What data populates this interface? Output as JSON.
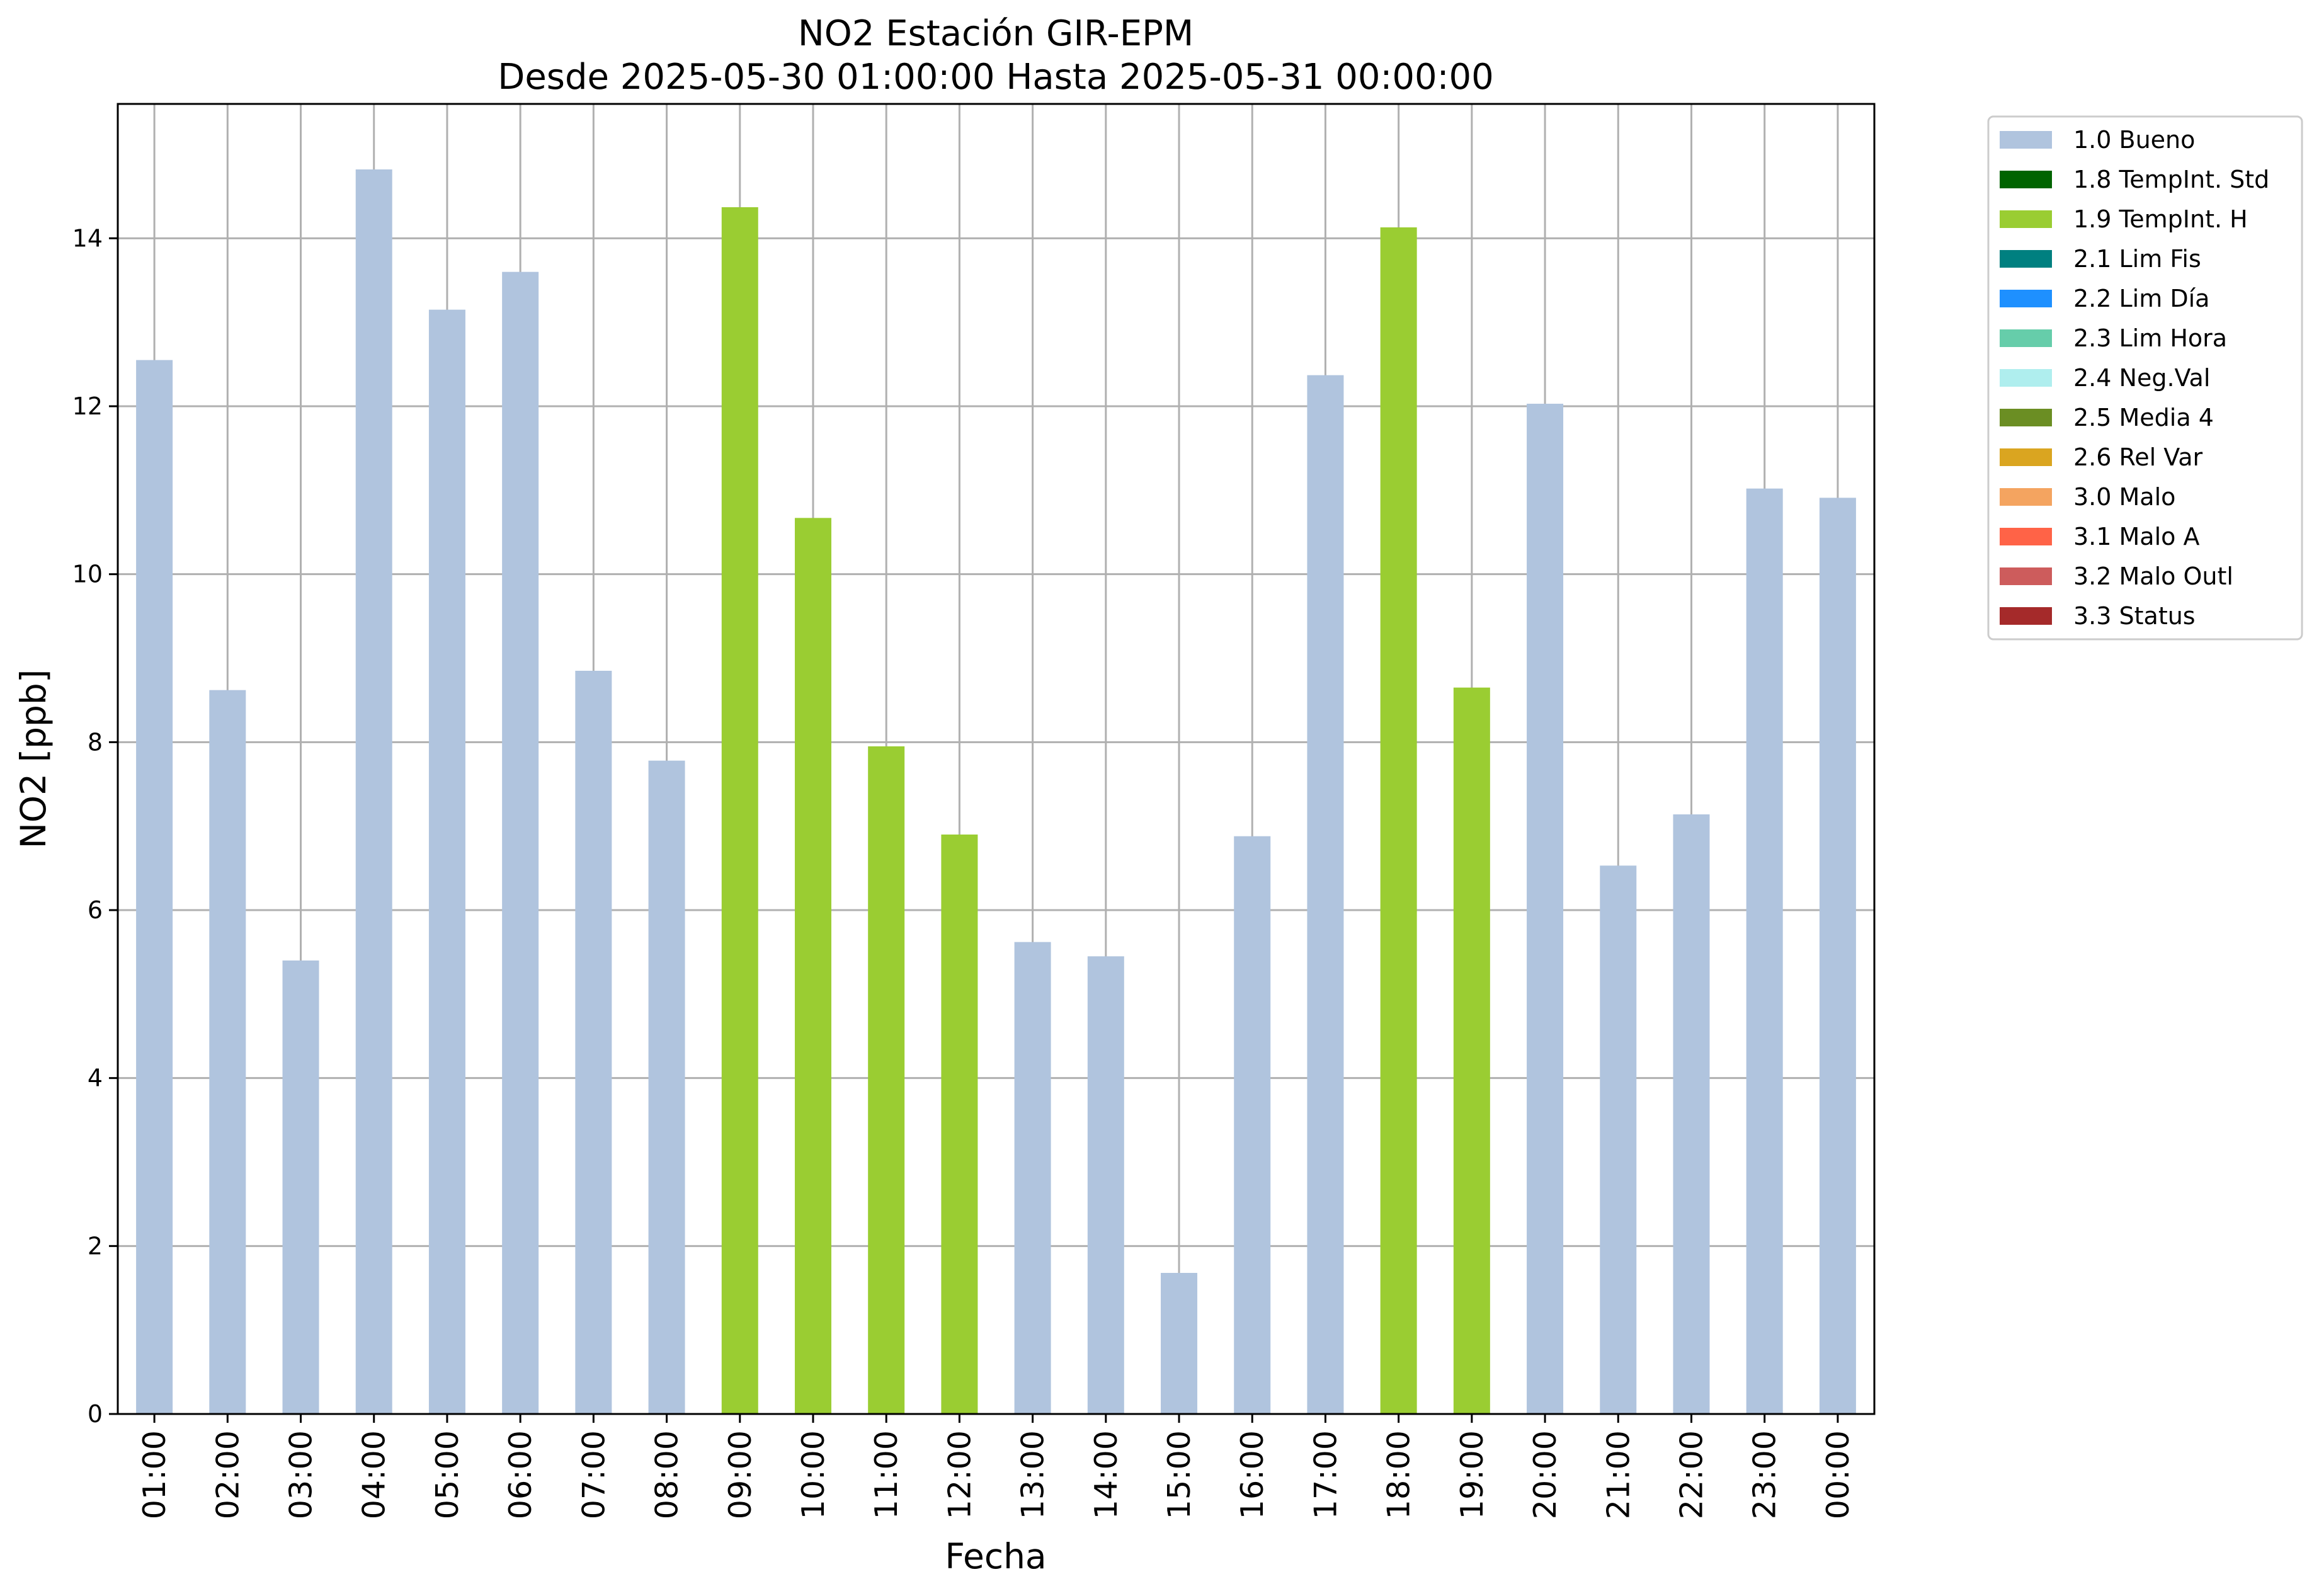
{
  "chart_data": {
    "type": "bar",
    "title": "NO2 Estación GIR-EPM",
    "subtitle": "Desde 2025-05-30 01:00:00 Hasta 2025-05-31 00:00:00",
    "xlabel": "Fecha",
    "ylabel": "NO2 [ppb]",
    "ylim": [
      0,
      15.6
    ],
    "yticks": [
      "0",
      "2",
      "4",
      "6",
      "8",
      "10",
      "12",
      "14"
    ],
    "grid": true,
    "legend_position": "outside-right",
    "categories": [
      "01:00",
      "02:00",
      "03:00",
      "04:00",
      "05:00",
      "06:00",
      "07:00",
      "08:00",
      "09:00",
      "10:00",
      "11:00",
      "12:00",
      "13:00",
      "14:00",
      "15:00",
      "16:00",
      "17:00",
      "18:00",
      "19:00",
      "20:00",
      "21:00",
      "22:00",
      "23:00",
      "00:00"
    ],
    "values": [
      12.55,
      8.62,
      5.4,
      14.82,
      13.15,
      13.6,
      8.85,
      7.78,
      14.37,
      10.67,
      7.95,
      6.9,
      5.62,
      5.45,
      1.68,
      6.88,
      12.37,
      14.13,
      8.65,
      12.03,
      6.53,
      7.14,
      11.02,
      10.91
    ],
    "flags": [
      "1.0",
      "1.0",
      "1.0",
      "1.0",
      "1.0",
      "1.0",
      "1.0",
      "1.0",
      "1.9",
      "1.9",
      "1.9",
      "1.9",
      "1.0",
      "1.0",
      "1.0",
      "1.0",
      "1.0",
      "1.9",
      "1.9",
      "1.0",
      "1.0",
      "1.0",
      "1.0",
      "1.0"
    ],
    "legend": [
      {
        "code": "1.0",
        "label": "1.0 Bueno",
        "color": "#b0c4de"
      },
      {
        "code": "1.8",
        "label": "1.8 TempInt. Std",
        "color": "#006400"
      },
      {
        "code": "1.9",
        "label": "1.9 TempInt. H",
        "color": "#9acd32"
      },
      {
        "code": "2.1",
        "label": "2.1 Lim Fis",
        "color": "#008080"
      },
      {
        "code": "2.2",
        "label": "2.2 Lim Día",
        "color": "#1e90ff"
      },
      {
        "code": "2.3",
        "label": "2.3 Lim Hora",
        "color": "#66cdaa"
      },
      {
        "code": "2.4",
        "label": "2.4 Neg.Val",
        "color": "#afeeee"
      },
      {
        "code": "2.5",
        "label": "2.5 Media 4",
        "color": "#6b8e23"
      },
      {
        "code": "2.6",
        "label": "2.6 Rel Var",
        "color": "#daa520"
      },
      {
        "code": "3.0",
        "label": "3.0 Malo",
        "color": "#f4a460"
      },
      {
        "code": "3.1",
        "label": "3.1 Malo A",
        "color": "#ff6347"
      },
      {
        "code": "3.2",
        "label": "3.2 Malo Outl",
        "color": "#cd5c5c"
      },
      {
        "code": "3.3",
        "label": "3.3 Status",
        "color": "#a52a2a"
      }
    ]
  }
}
